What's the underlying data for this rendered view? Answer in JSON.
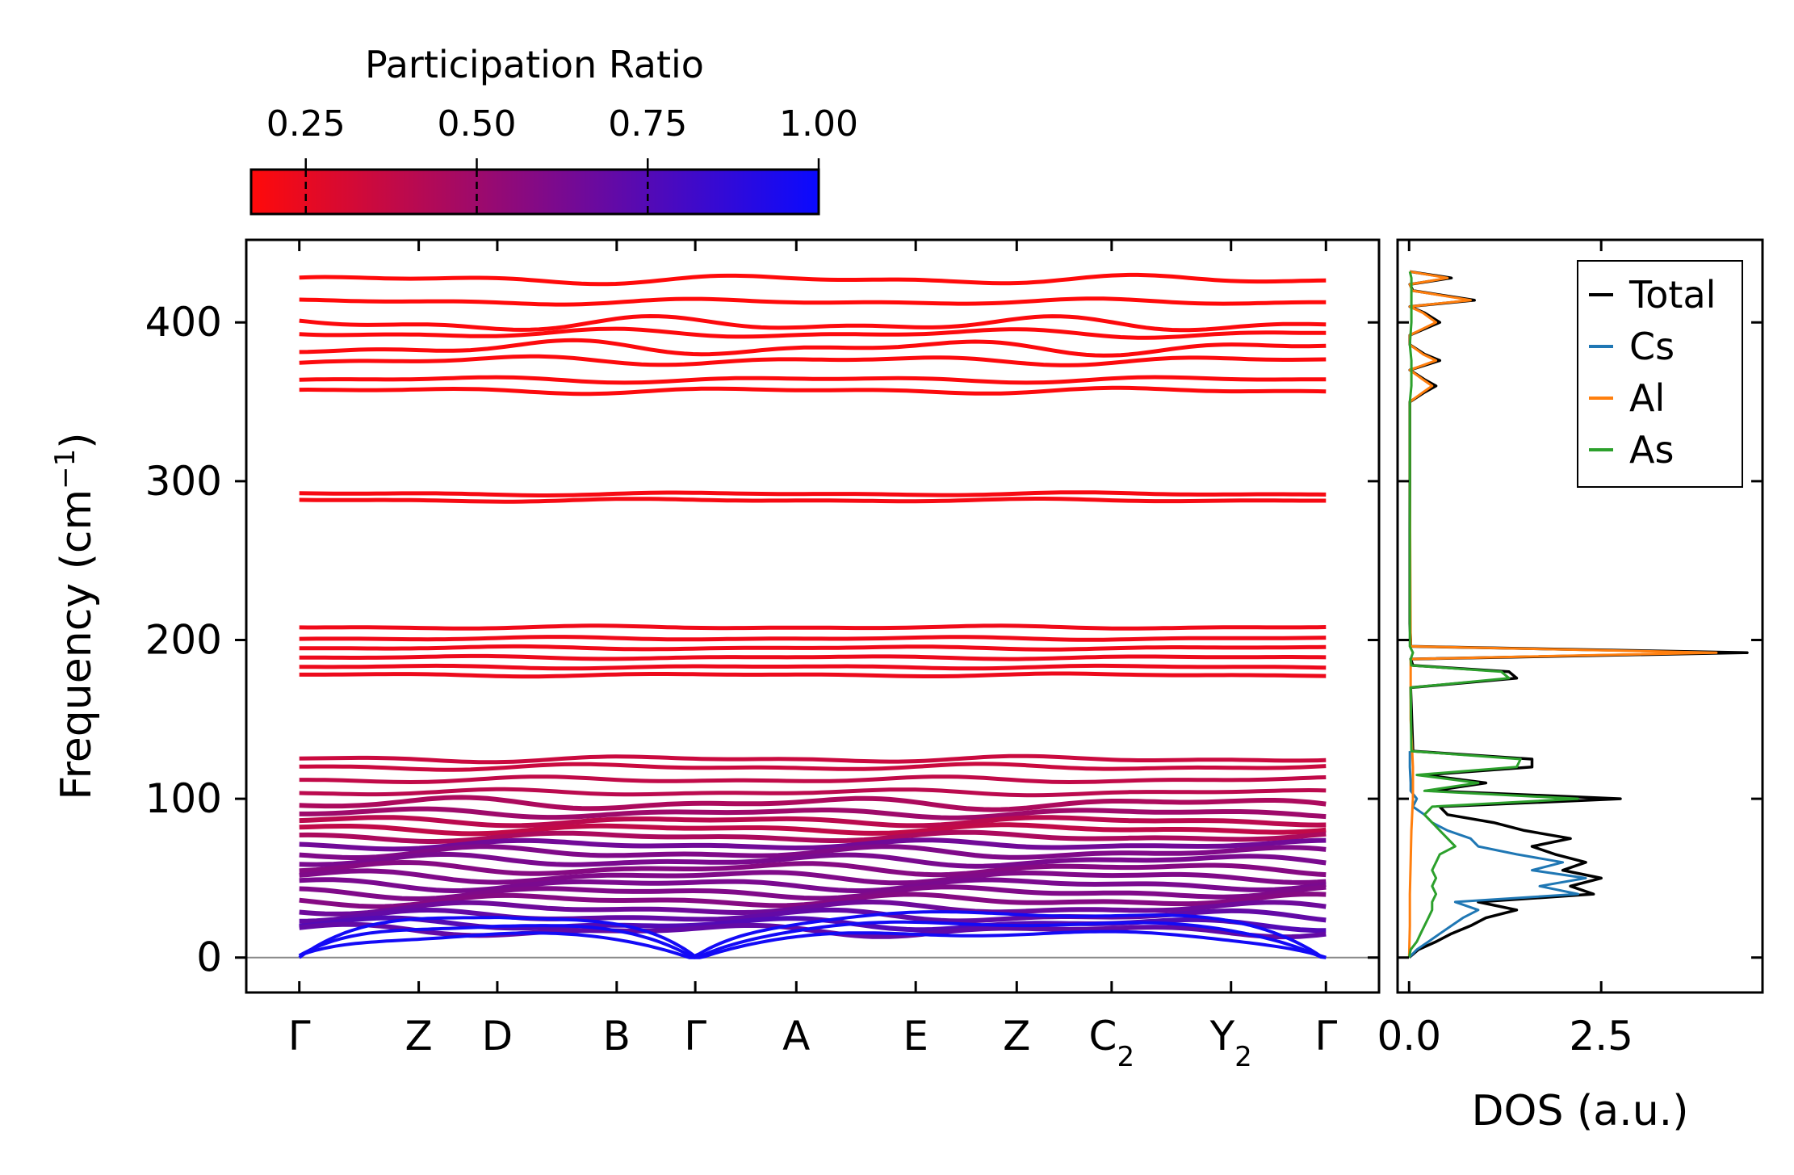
{
  "chart_data": [
    {
      "type": "line",
      "name": "phonon-band-structure",
      "title": "",
      "xlabel": "",
      "ylabel": "Frequency (cm",
      "ylabel_sup": "−1",
      "ylabel_end": ")",
      "ylim": [
        -22,
        452
      ],
      "yticks": [
        0,
        100,
        200,
        300,
        400
      ],
      "ytick_labels": [
        "0",
        "100",
        "200",
        "300",
        "400"
      ],
      "high_symmetry_points": [
        {
          "label": "Γ",
          "sub": "",
          "x": 0.0
        },
        {
          "label": "Z",
          "sub": "",
          "x": 1.17
        },
        {
          "label": "D",
          "sub": "",
          "x": 1.94
        },
        {
          "label": "B",
          "sub": "",
          "x": 3.11
        },
        {
          "label": "Γ",
          "sub": "",
          "x": 3.88
        },
        {
          "label": "A",
          "sub": "",
          "x": 4.87
        },
        {
          "label": "E",
          "sub": "",
          "x": 6.04
        },
        {
          "label": "Z",
          "sub": "",
          "x": 7.03
        },
        {
          "label": "C",
          "sub": "2",
          "x": 7.96
        },
        {
          "label": "Y",
          "sub": "2",
          "x": 9.13
        },
        {
          "label": "Γ",
          "sub": "",
          "x": 10.06
        }
      ],
      "xlim": [
        -0.52,
        10.58
      ],
      "colormap": {
        "name": "Participation Ratio",
        "low_color": "#ff0a0a",
        "high_color": "#0a0aff",
        "range": [
          0.17,
          1.0
        ],
        "ticks": [
          0.25,
          0.5,
          0.75,
          1.0
        ],
        "tick_labels": [
          "0.25",
          "0.50",
          "0.75",
          "1.00"
        ],
        "title": "Participation Ratio"
      },
      "optical_branches": [
        {
          "freq": 427,
          "pr": 0.17,
          "wiggle": 3
        },
        {
          "freq": 413,
          "pr": 0.17,
          "wiggle": 2
        },
        {
          "freq": 399,
          "pr": 0.18,
          "wiggle": 5
        },
        {
          "freq": 393,
          "pr": 0.18,
          "wiggle": 3
        },
        {
          "freq": 384,
          "pr": 0.18,
          "wiggle": 5
        },
        {
          "freq": 376,
          "pr": 0.18,
          "wiggle": 3
        },
        {
          "freq": 364,
          "pr": 0.18,
          "wiggle": 2
        },
        {
          "freq": 357,
          "pr": 0.18,
          "wiggle": 2
        },
        {
          "freq": 292,
          "pr": 0.2,
          "wiggle": 1
        },
        {
          "freq": 288,
          "pr": 0.2,
          "wiggle": 1
        },
        {
          "freq": 208,
          "pr": 0.22,
          "wiggle": 1
        },
        {
          "freq": 201,
          "pr": 0.22,
          "wiggle": 1
        },
        {
          "freq": 195,
          "pr": 0.22,
          "wiggle": 1
        },
        {
          "freq": 189,
          "pr": 0.23,
          "wiggle": 1
        },
        {
          "freq": 183,
          "pr": 0.23,
          "wiggle": 1
        },
        {
          "freq": 178,
          "pr": 0.23,
          "wiggle": 1
        },
        {
          "freq": 125,
          "pr": 0.35,
          "wiggle": 2
        },
        {
          "freq": 120,
          "pr": 0.35,
          "wiggle": 2
        },
        {
          "freq": 112,
          "pr": 0.38,
          "wiggle": 2
        },
        {
          "freq": 104,
          "pr": 0.4,
          "wiggle": 2
        },
        {
          "freq": 97,
          "pr": 0.45,
          "wiggle": 4
        },
        {
          "freq": 91,
          "pr": 0.5,
          "wiggle": 3
        },
        {
          "freq": 86,
          "pr": 0.4,
          "wiggle": 3
        },
        {
          "freq": 81,
          "pr": 0.38,
          "wiggle": 3
        },
        {
          "freq": 76,
          "pr": 0.45,
          "wiggle": 3
        },
        {
          "freq": 71,
          "pr": 0.65,
          "wiggle": 3
        },
        {
          "freq": 66,
          "pr": 0.6,
          "wiggle": 4
        },
        {
          "freq": 61,
          "pr": 0.62,
          "wiggle": 4
        },
        {
          "freq": 56,
          "pr": 0.58,
          "wiggle": 4
        },
        {
          "freq": 51,
          "pr": 0.6,
          "wiggle": 4
        },
        {
          "freq": 46,
          "pr": 0.62,
          "wiggle": 4
        },
        {
          "freq": 41,
          "pr": 0.6,
          "wiggle": 4
        },
        {
          "freq": 36,
          "pr": 0.58,
          "wiggle": 4
        },
        {
          "freq": 31,
          "pr": 0.66,
          "wiggle": 4
        },
        {
          "freq": 26,
          "pr": 0.7,
          "wiggle": 4
        },
        {
          "freq": 21,
          "pr": 0.75,
          "wiggle": 4
        },
        {
          "freq": 17,
          "pr": 0.7,
          "wiggle": 4
        }
      ],
      "acoustic_pr": 0.97,
      "acoustic_peak_freq": 28
    },
    {
      "type": "line",
      "name": "phonon-dos",
      "xlabel": "DOS (a.u.)",
      "ylabel": "",
      "xlim": [
        -0.15,
        4.6
      ],
      "xticks": [
        0.0,
        2.5
      ],
      "xtick_labels": [
        "0.0",
        "2.5"
      ],
      "ylim": [
        -22,
        452
      ],
      "series": [
        {
          "name": "Total",
          "color": "#000000",
          "freq": [
            0,
            5,
            10,
            15,
            20,
            25,
            30,
            35,
            40,
            45,
            50,
            55,
            60,
            65,
            70,
            75,
            80,
            85,
            90,
            95,
            100,
            105,
            110,
            115,
            120,
            125,
            130,
            170,
            176,
            180,
            184,
            188,
            192,
            196,
            200,
            210,
            280,
            350,
            356,
            360,
            364,
            370,
            376,
            380,
            386,
            392,
            400,
            406,
            410,
            414,
            420,
            424,
            428,
            432
          ],
          "values": [
            0.0,
            0.12,
            0.35,
            0.55,
            0.8,
            1.0,
            1.4,
            0.9,
            2.4,
            2.1,
            2.5,
            2.0,
            2.3,
            1.9,
            1.6,
            2.1,
            1.5,
            1.1,
            0.5,
            0.4,
            2.75,
            0.3,
            1.0,
            0.2,
            1.6,
            1.6,
            0.05,
            0.02,
            1.4,
            1.3,
            0.05,
            0.02,
            4.4,
            0.02,
            0.02,
            0.01,
            0.01,
            0.01,
            0.2,
            0.35,
            0.2,
            0.01,
            0.4,
            0.2,
            0.01,
            0.01,
            0.4,
            0.2,
            0.01,
            0.85,
            0.05,
            0.01,
            0.55,
            0.01
          ]
        },
        {
          "name": "Cs",
          "color": "#1f77b4",
          "freq": [
            0,
            5,
            10,
            15,
            20,
            25,
            30,
            35,
            40,
            45,
            50,
            55,
            60,
            65,
            70,
            75,
            80,
            85,
            90,
            95,
            100,
            105,
            110,
            120,
            130
          ],
          "values": [
            0.0,
            0.1,
            0.25,
            0.4,
            0.55,
            0.7,
            0.9,
            0.6,
            2.2,
            1.7,
            2.3,
            1.6,
            2.0,
            1.4,
            0.9,
            0.8,
            0.5,
            0.3,
            0.2,
            0.05,
            0.1,
            0.02,
            0.02,
            0.01,
            0.01
          ]
        },
        {
          "name": "Al",
          "color": "#ff7f0e",
          "freq": [
            0,
            20,
            40,
            60,
            80,
            100,
            120,
            150,
            188,
            192,
            196,
            300,
            350,
            356,
            360,
            364,
            370,
            376,
            380,
            386,
            392,
            400,
            406,
            410,
            414,
            420,
            424,
            428,
            432
          ],
          "values": [
            0.0,
            0.01,
            0.01,
            0.02,
            0.03,
            0.05,
            0.05,
            0.02,
            0.02,
            4.0,
            0.02,
            0.01,
            0.01,
            0.18,
            0.3,
            0.18,
            0.01,
            0.35,
            0.18,
            0.01,
            0.01,
            0.35,
            0.18,
            0.01,
            0.8,
            0.04,
            0.01,
            0.5,
            0.01
          ]
        },
        {
          "name": "As",
          "color": "#2ca02c",
          "freq": [
            0,
            5,
            10,
            15,
            20,
            25,
            30,
            35,
            40,
            45,
            50,
            55,
            60,
            65,
            70,
            75,
            80,
            85,
            90,
            95,
            100,
            105,
            110,
            115,
            120,
            125,
            130,
            170,
            176,
            180,
            184,
            188,
            192,
            196,
            210,
            350,
            360,
            376,
            386,
            400,
            414,
            428,
            432
          ],
          "values": [
            0.0,
            0.02,
            0.1,
            0.15,
            0.2,
            0.25,
            0.3,
            0.3,
            0.35,
            0.3,
            0.35,
            0.3,
            0.35,
            0.4,
            0.6,
            0.5,
            0.4,
            0.3,
            0.2,
            0.3,
            2.2,
            0.2,
            0.9,
            0.1,
            1.4,
            1.45,
            0.03,
            0.02,
            1.3,
            1.2,
            0.03,
            0.02,
            0.05,
            0.01,
            0.01,
            0.01,
            0.03,
            0.03,
            0.01,
            0.03,
            0.03,
            0.03,
            0.01
          ]
        }
      ],
      "legend": {
        "position": "upper-right",
        "entries": [
          "Total",
          "Cs",
          "Al",
          "As"
        ]
      }
    }
  ]
}
